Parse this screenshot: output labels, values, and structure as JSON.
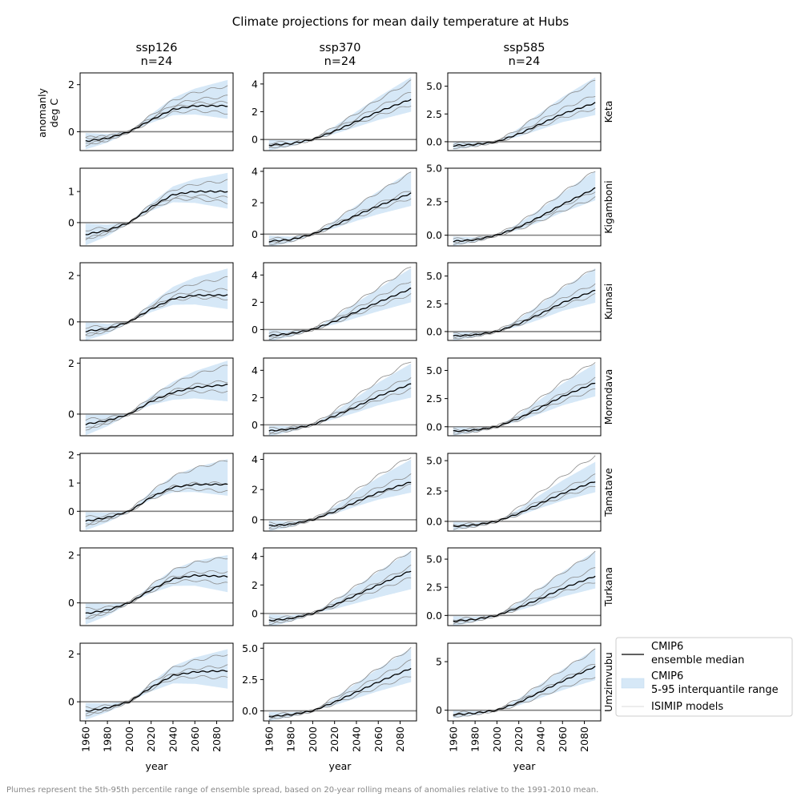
{
  "title": "Climate projections for mean daily temperature at Hubs",
  "footnote": "Plumes represent the 5th-95th percentile range of ensemble spread, based on 20-year rolling means of anomalies relative to the 1991-2010 mean.",
  "y_axis_label_line1": "anomanly",
  "y_axis_label_line2": "deg C",
  "x_axis_label": "year",
  "colors": {
    "band": "#d6e8f7",
    "median": "#000000",
    "models": "#8a8a8a",
    "zero_line": "#808080"
  },
  "legend": {
    "median_line1": "CMIP6",
    "median_line2": "ensemble median",
    "band_line1": "CMIP6",
    "band_line2": "5-95 interquantile range",
    "models": "ISIMIP models"
  },
  "chart_data": {
    "type": "line",
    "x_range": [
      1955,
      2095
    ],
    "x_ticks": [
      1960,
      1980,
      2000,
      2020,
      2040,
      2060,
      2080
    ],
    "scenarios": [
      {
        "name": "ssp126",
        "n_label": "n=24"
      },
      {
        "name": "ssp370",
        "n_label": "n=24"
      },
      {
        "name": "ssp585",
        "n_label": "n=24"
      }
    ],
    "hubs": [
      "Keta",
      "Kigamboni",
      "Kumasi",
      "Morondava",
      "Tamatave",
      "Turkana",
      "Umzimvubu"
    ],
    "median_milestones_years": [
      1960,
      1980,
      2000,
      2020,
      2040,
      2060,
      2090
    ],
    "panels": [
      [
        {
          "ylim": [
            -0.8,
            2.5
          ],
          "yticks": [
            0,
            2
          ],
          "ytick_labels": [
            "0",
            "2"
          ],
          "median": [
            -0.4,
            -0.28,
            0,
            0.5,
            0.95,
            1.1,
            1.1
          ],
          "p5": -0.6,
          "p95_end": 2.2,
          "p5_end": 0.55,
          "models_end": [
            1.95,
            1.5,
            1.25,
            0.8
          ]
        },
        {
          "ylim": [
            -0.8,
            4.8
          ],
          "yticks": [
            0,
            2,
            4
          ],
          "ytick_labels": [
            "0",
            "2",
            "4"
          ],
          "median": [
            -0.4,
            -0.3,
            0,
            0.6,
            1.3,
            2.0,
            2.9
          ],
          "p5": -0.65,
          "p95_end": 4.5,
          "p5_end": 2.0,
          "models_end": [
            4.2,
            3.4,
            2.5
          ]
        },
        {
          "ylim": [
            -0.8,
            6.2
          ],
          "yticks": [
            0,
            2.5,
            5.0
          ],
          "ytick_labels": [
            "0.0",
            "2.5",
            "5.0"
          ],
          "median": [
            -0.35,
            -0.25,
            0,
            0.7,
            1.6,
            2.5,
            3.5
          ],
          "p5": -0.65,
          "p95_end": 5.8,
          "p5_end": 2.4,
          "models_end": [
            5.5,
            4.2,
            3.0
          ]
        }
      ],
      [
        {
          "ylim": [
            -0.75,
            1.75
          ],
          "yticks": [
            0,
            1
          ],
          "ytick_labels": [
            "0",
            "1"
          ],
          "median": [
            -0.38,
            -0.25,
            0,
            0.5,
            0.9,
            1.0,
            1.0
          ],
          "p5": -0.6,
          "p95_end": 1.6,
          "p5_end": 0.45,
          "models_end": [
            1.35,
            0.8,
            0.65
          ]
        },
        {
          "ylim": [
            -0.75,
            4.2
          ],
          "yticks": [
            0,
            2,
            4
          ],
          "ytick_labels": [
            "0",
            "2",
            "4"
          ],
          "median": [
            -0.45,
            -0.35,
            0,
            0.55,
            1.2,
            1.8,
            2.6
          ],
          "p5": -0.6,
          "p95_end": 4.0,
          "p5_end": 1.8,
          "models_end": [
            3.9,
            2.8,
            2.3
          ]
        },
        {
          "ylim": [
            -0.8,
            5.0
          ],
          "yticks": [
            0,
            2.5,
            5.0
          ],
          "ytick_labels": [
            "0.0",
            "2.5",
            "5.0"
          ],
          "median": [
            -0.45,
            -0.35,
            0,
            0.6,
            1.4,
            2.3,
            3.5
          ],
          "p5": -0.6,
          "p95_end": 4.8,
          "p5_end": 2.6,
          "models_end": [
            4.8,
            3.3,
            2.8
          ]
        }
      ],
      [
        {
          "ylim": [
            -0.8,
            2.55
          ],
          "yticks": [
            0,
            2
          ],
          "ytick_labels": [
            "0",
            "2"
          ],
          "median": [
            -0.4,
            -0.3,
            0,
            0.55,
            1.0,
            1.15,
            1.15
          ],
          "p5": -0.7,
          "p95_end": 2.3,
          "p5_end": 0.55,
          "models_end": [
            1.9,
            1.4,
            1.0
          ]
        },
        {
          "ylim": [
            -0.8,
            4.9
          ],
          "yticks": [
            0,
            2,
            4
          ],
          "ytick_labels": [
            "0",
            "2",
            "4"
          ],
          "median": [
            -0.45,
            -0.3,
            0,
            0.6,
            1.3,
            2.0,
            3.0
          ],
          "p5": -0.7,
          "p95_end": 4.5,
          "p5_end": 2.0,
          "models_end": [
            4.6,
            3.6,
            2.6
          ]
        },
        {
          "ylim": [
            -0.8,
            6.2
          ],
          "yticks": [
            0,
            2.5,
            5.0
          ],
          "ytick_labels": [
            "0.0",
            "2.5",
            "5.0"
          ],
          "median": [
            -0.4,
            -0.3,
            0,
            0.7,
            1.6,
            2.6,
            3.7
          ],
          "p5": -0.7,
          "p95_end": 5.7,
          "p5_end": 2.6,
          "models_end": [
            5.7,
            4.3,
            3.3
          ]
        }
      ],
      [
        {
          "ylim": [
            -0.85,
            2.2
          ],
          "yticks": [
            0,
            2
          ],
          "ytick_labels": [
            "0",
            "2"
          ],
          "median": [
            -0.4,
            -0.25,
            0,
            0.5,
            0.85,
            1.05,
            1.15
          ],
          "p5": -0.75,
          "p95_end": 2.1,
          "p5_end": 0.5,
          "models_end": [
            1.9,
            1.3,
            0.9
          ]
        },
        {
          "ylim": [
            -0.8,
            4.9
          ],
          "yticks": [
            0,
            2,
            4
          ],
          "ytick_labels": [
            "0",
            "2",
            "4"
          ],
          "median": [
            -0.45,
            -0.3,
            0,
            0.65,
            1.35,
            2.1,
            3.0
          ],
          "p5": -0.65,
          "p95_end": 4.5,
          "p5_end": 2.0,
          "models_end": [
            4.7,
            3.5,
            2.6
          ]
        },
        {
          "ylim": [
            -0.8,
            6.1
          ],
          "yticks": [
            0,
            2.5,
            5.0
          ],
          "ytick_labels": [
            "0.0",
            "2.5",
            "5.0"
          ],
          "median": [
            -0.4,
            -0.3,
            0,
            0.75,
            1.7,
            2.7,
            3.9
          ],
          "p5": -0.65,
          "p95_end": 5.6,
          "p5_end": 2.7,
          "models_end": [
            5.8,
            4.3,
            3.3
          ]
        }
      ],
      [
        {
          "ylim": [
            -0.7,
            2.05
          ],
          "yticks": [
            0,
            1,
            2
          ],
          "ytick_labels": [
            "0",
            "1",
            "2"
          ],
          "median": [
            -0.35,
            -0.22,
            0,
            0.5,
            0.85,
            0.95,
            0.95
          ],
          "p5": -0.55,
          "p95_end": 1.85,
          "p5_end": 0.55,
          "models_end": [
            1.8,
            1.0,
            0.7
          ]
        },
        {
          "ylim": [
            -0.75,
            4.4
          ],
          "yticks": [
            0,
            2,
            4
          ],
          "ytick_labels": [
            "0",
            "2",
            "4"
          ],
          "median": [
            -0.4,
            -0.3,
            0,
            0.55,
            1.2,
            1.8,
            2.5
          ],
          "p5": -0.6,
          "p95_end": 4.0,
          "p5_end": 1.8,
          "models_end": [
            4.2,
            3.0,
            2.3
          ]
        },
        {
          "ylim": [
            -0.8,
            5.6
          ],
          "yticks": [
            0,
            2.5,
            5.0
          ],
          "ytick_labels": [
            "0.0",
            "2.5",
            "5.0"
          ],
          "median": [
            -0.4,
            -0.3,
            0,
            0.65,
            1.5,
            2.3,
            3.3
          ],
          "p5": -0.6,
          "p95_end": 4.9,
          "p5_end": 2.4,
          "models_end": [
            5.4,
            3.8,
            2.9
          ]
        }
      ],
      [
        {
          "ylim": [
            -0.95,
            2.3
          ],
          "yticks": [
            0,
            2
          ],
          "ytick_labels": [
            "0",
            "2"
          ],
          "median": [
            -0.45,
            -0.3,
            0,
            0.55,
            1.0,
            1.15,
            1.1
          ],
          "p5": -0.8,
          "p95_end": 2.0,
          "p5_end": 0.45,
          "models_end": [
            1.9,
            1.3,
            0.8
          ]
        },
        {
          "ylim": [
            -0.85,
            4.6
          ],
          "yticks": [
            0,
            2,
            4
          ],
          "ytick_labels": [
            "0",
            "2",
            "4"
          ],
          "median": [
            -0.5,
            -0.35,
            0,
            0.6,
            1.3,
            2.0,
            3.0
          ],
          "p5": -0.75,
          "p95_end": 4.4,
          "p5_end": 1.7,
          "models_end": [
            4.4,
            3.3,
            2.5
          ]
        },
        {
          "ylim": [
            -0.9,
            6.0
          ],
          "yticks": [
            0,
            2.5,
            5.0
          ],
          "ytick_labels": [
            "0.0",
            "2.5",
            "5.0"
          ],
          "median": [
            -0.5,
            -0.35,
            0,
            0.7,
            1.5,
            2.4,
            3.5
          ],
          "p5": -0.75,
          "p95_end": 5.7,
          "p5_end": 2.4,
          "models_end": [
            5.6,
            4.2,
            3.0
          ]
        }
      ],
      [
        {
          "ylim": [
            -0.8,
            2.45
          ],
          "yticks": [
            0,
            2
          ],
          "ytick_labels": [
            "0",
            "2"
          ],
          "median": [
            -0.4,
            -0.25,
            0,
            0.6,
            1.1,
            1.25,
            1.3
          ],
          "p5": -0.6,
          "p95_end": 2.2,
          "p5_end": 0.55,
          "models_end": [
            2.0,
            1.5,
            1.0
          ]
        },
        {
          "ylim": [
            -0.8,
            5.4
          ],
          "yticks": [
            0,
            2.5,
            5.0
          ],
          "ytick_labels": [
            "0.0",
            "2.5",
            "5.0"
          ],
          "median": [
            -0.45,
            -0.3,
            0,
            0.7,
            1.5,
            2.3,
            3.4
          ],
          "p5": -0.6,
          "p95_end": 5.0,
          "p5_end": 2.3,
          "models_end": [
            5.0,
            4.0,
            2.8
          ]
        },
        {
          "ylim": [
            -1.1,
            6.9
          ],
          "yticks": [
            0,
            5
          ],
          "ytick_labels": [
            "0",
            "5"
          ],
          "median": [
            -0.45,
            -0.3,
            0,
            0.8,
            1.9,
            3.0,
            4.5
          ],
          "p5": -0.65,
          "p95_end": 6.3,
          "p5_end": 3.1,
          "models_end": [
            6.2,
            4.8,
            3.5
          ]
        }
      ]
    ]
  }
}
